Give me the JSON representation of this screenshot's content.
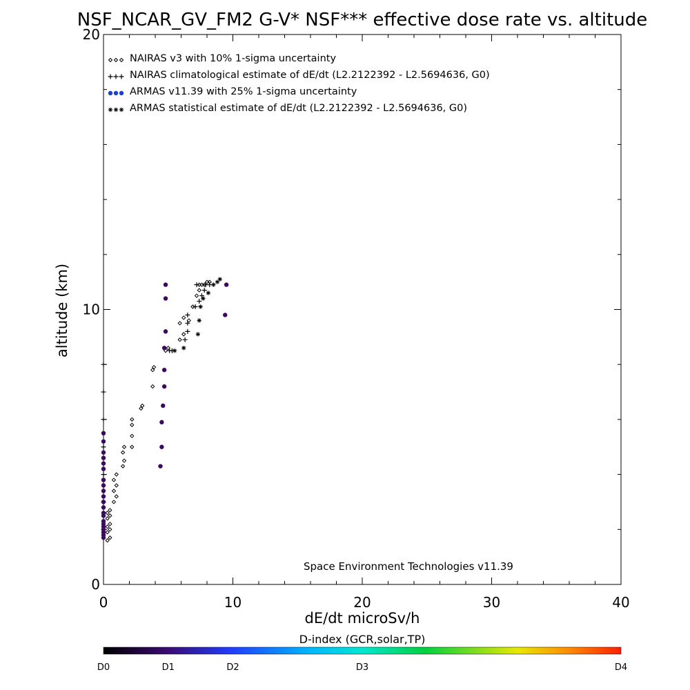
{
  "chart_data": {
    "type": "scatter",
    "title": "NSF_NCAR_GV_FM2 G-V* NSF*** effective dose rate vs. altitude",
    "xlabel": "dE/dt microSv/h",
    "ylabel": "altitude (km)",
    "xlim": [
      0,
      40
    ],
    "ylim": [
      0,
      20
    ],
    "x_ticks": [
      0,
      10,
      20,
      30,
      40
    ],
    "y_ticks": [
      0,
      10,
      20
    ],
    "grid": false,
    "legend_position": "top-left",
    "legend": [
      {
        "marker": "diamond",
        "symbols": "◇◇◇",
        "color": "#000000",
        "label": "NAIRAS v3 with 10% 1-sigma uncertainty"
      },
      {
        "marker": "plus",
        "symbols": "+++",
        "color": "#000000",
        "label": "NAIRAS climatological estimate of dE/dt (L2.2122392 - L2.5694636, G0)"
      },
      {
        "marker": "dot",
        "symbols": "●●●",
        "color": "#1a3fd1",
        "label": "ARMAS v11.39 with 25% 1-sigma uncertainty"
      },
      {
        "marker": "asterisk",
        "symbols": "***",
        "color": "#000000",
        "label": "ARMAS statistical estimate of dE/dt (L2.2122392 - L2.5694636, G0)"
      }
    ],
    "annotation": "Space Environment Technologies v11.39",
    "colorbar": {
      "title": "D-index (GCR,solar,TP)",
      "labels": [
        {
          "text": "D0",
          "pos": 0
        },
        {
          "text": "D1",
          "pos": 0.125
        },
        {
          "text": "D2",
          "pos": 0.25
        },
        {
          "text": "D3",
          "pos": 0.5
        },
        {
          "text": "D4",
          "pos": 1.0
        }
      ]
    },
    "series": [
      {
        "name": "NAIRAS v3 with 10% 1-sigma uncertainty",
        "marker": "diamond",
        "color": "#000000",
        "points": [
          [
            0.3,
            1.6
          ],
          [
            0.5,
            1.7
          ],
          [
            0.3,
            1.9
          ],
          [
            0.5,
            2.0
          ],
          [
            0.3,
            2.1
          ],
          [
            0.5,
            2.2
          ],
          [
            0.3,
            2.4
          ],
          [
            0.5,
            2.5
          ],
          [
            0.3,
            2.6
          ],
          [
            0.5,
            2.7
          ],
          [
            0.8,
            3.0
          ],
          [
            1.0,
            3.2
          ],
          [
            0.8,
            3.4
          ],
          [
            1.0,
            3.6
          ],
          [
            0.8,
            3.8
          ],
          [
            1.0,
            4.0
          ],
          [
            1.5,
            4.3
          ],
          [
            1.6,
            4.5
          ],
          [
            1.5,
            4.8
          ],
          [
            1.6,
            5.0
          ],
          [
            2.2,
            5.0
          ],
          [
            2.2,
            5.4
          ],
          [
            2.2,
            5.8
          ],
          [
            2.2,
            6.0
          ],
          [
            2.9,
            6.4
          ],
          [
            3.0,
            6.5
          ],
          [
            3.8,
            7.2
          ],
          [
            3.8,
            7.8
          ],
          [
            3.9,
            7.9
          ],
          [
            4.8,
            8.5
          ],
          [
            5.0,
            8.6
          ],
          [
            5.9,
            8.9
          ],
          [
            6.2,
            9.1
          ],
          [
            5.9,
            9.5
          ],
          [
            6.2,
            9.7
          ],
          [
            6.6,
            9.6
          ],
          [
            6.9,
            10.1
          ],
          [
            7.2,
            10.5
          ],
          [
            7.4,
            10.7
          ],
          [
            7.4,
            10.9
          ],
          [
            7.6,
            10.9
          ],
          [
            7.8,
            10.9
          ],
          [
            8.0,
            11.0
          ],
          [
            8.2,
            11.0
          ]
        ]
      },
      {
        "name": "NAIRAS climatological estimate of dE/dt (L2.2122392 - L2.5694636, G0)",
        "marker": "plus",
        "color": "#000000",
        "points": [
          [
            0.0,
            2.0
          ],
          [
            0.0,
            3.0
          ],
          [
            0.0,
            4.0
          ],
          [
            0.0,
            5.0
          ],
          [
            0.0,
            6.0
          ],
          [
            0.0,
            7.0
          ],
          [
            0.0,
            8.0
          ],
          [
            5.1,
            8.5
          ],
          [
            5.3,
            8.5
          ],
          [
            6.3,
            8.9
          ],
          [
            6.5,
            9.2
          ],
          [
            6.5,
            9.5
          ],
          [
            6.5,
            9.8
          ],
          [
            7.1,
            10.1
          ],
          [
            7.4,
            10.3
          ],
          [
            7.6,
            10.5
          ],
          [
            7.8,
            10.7
          ],
          [
            7.2,
            10.9
          ],
          [
            7.9,
            10.9
          ],
          [
            8.2,
            10.9
          ]
        ]
      },
      {
        "name": "ARMAS v11.39 with 25% 1-sigma uncertainty",
        "marker": "dot",
        "color": "#3a0a5e",
        "points": [
          [
            4.4,
            4.3
          ],
          [
            4.5,
            5.0
          ],
          [
            4.5,
            5.9
          ],
          [
            4.6,
            6.5
          ],
          [
            4.7,
            7.2
          ],
          [
            4.7,
            7.8
          ],
          [
            4.7,
            8.6
          ],
          [
            4.8,
            9.2
          ],
          [
            4.8,
            10.4
          ],
          [
            4.8,
            10.9
          ],
          [
            9.4,
            9.8
          ],
          [
            9.5,
            10.9
          ],
          [
            0.0,
            1.7
          ],
          [
            0.0,
            1.8
          ],
          [
            0.0,
            1.9
          ],
          [
            0.0,
            2.0
          ],
          [
            0.0,
            2.1
          ],
          [
            0.0,
            2.2
          ],
          [
            0.0,
            2.3
          ],
          [
            0.0,
            2.5
          ],
          [
            0.0,
            2.6
          ],
          [
            0.0,
            2.8
          ],
          [
            0.0,
            3.0
          ],
          [
            0.0,
            3.2
          ],
          [
            0.0,
            3.4
          ],
          [
            0.0,
            3.6
          ],
          [
            0.0,
            3.8
          ],
          [
            0.0,
            4.2
          ],
          [
            0.0,
            4.4
          ],
          [
            0.0,
            4.6
          ],
          [
            0.0,
            4.8
          ],
          [
            0.0,
            5.2
          ],
          [
            0.0,
            5.5
          ]
        ]
      },
      {
        "name": "ARMAS statistical estimate of dE/dt (L2.2122392 - L2.5694636, G0)",
        "marker": "asterisk",
        "color": "#000000",
        "points": [
          [
            5.5,
            8.5
          ],
          [
            6.2,
            8.6
          ],
          [
            7.3,
            9.1
          ],
          [
            7.4,
            9.6
          ],
          [
            7.5,
            10.1
          ],
          [
            7.7,
            10.4
          ],
          [
            8.1,
            10.6
          ],
          [
            8.5,
            10.9
          ],
          [
            8.8,
            11.0
          ],
          [
            9.0,
            11.1
          ]
        ]
      }
    ]
  }
}
